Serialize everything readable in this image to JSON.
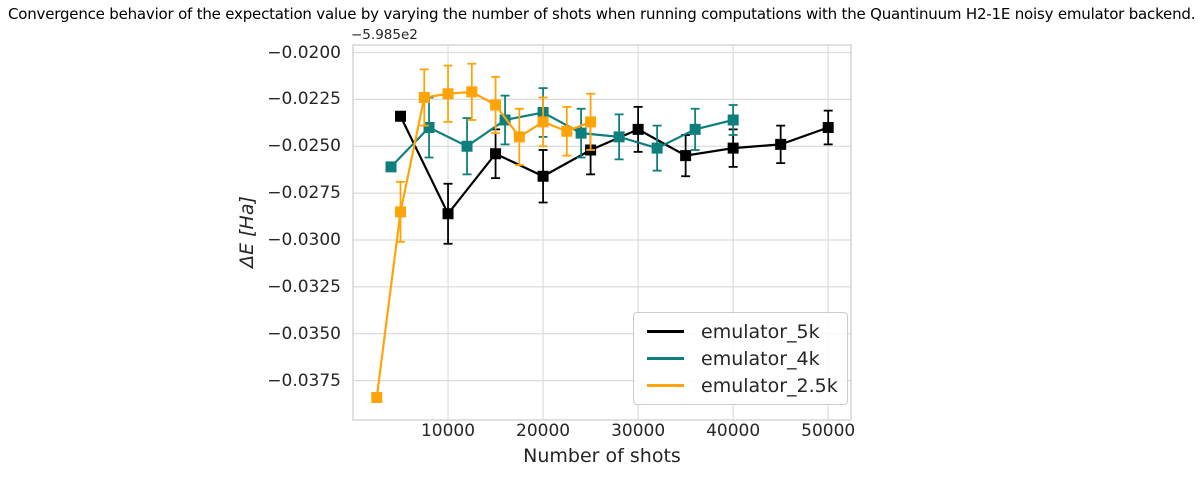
{
  "figure": {
    "title": "Convergence behavior of the expectation value by varying the number of shots when running computations with the Quantinuum H2-1E noisy emulator backend.",
    "y_offset_label": "−5.985e2",
    "xlabel": "Number of shots",
    "ylabel": "ΔE [Ha]"
  },
  "legend": {
    "position": "lower right",
    "entries": [
      {
        "label": "emulator_5k",
        "color": "#000000"
      },
      {
        "label": "emulator_4k",
        "color": "#0f7f7e"
      },
      {
        "label": "emulator_2.5k",
        "color": "#ffa408"
      }
    ]
  },
  "chart_data": {
    "type": "line",
    "title": "Convergence behavior of the expectation value by varying the number of shots when running computations with the Quantinuum H2-1E noisy emulator backend.",
    "xlabel": "Number of shots",
    "ylabel": "ΔE [Ha]",
    "y_axis_offset": "−5.985e2",
    "grid": true,
    "legend_position": "lower right",
    "xlim": [
      0,
      52400
    ],
    "ylim": [
      -0.0396,
      -0.0196
    ],
    "x_ticks": [
      10000,
      20000,
      30000,
      40000,
      50000
    ],
    "y_ticks": [
      -0.02,
      -0.0225,
      -0.025,
      -0.0275,
      -0.03,
      -0.0325,
      -0.035,
      -0.0375
    ],
    "series": [
      {
        "name": "emulator_5k",
        "color": "#000000",
        "marker": "square",
        "x": [
          5000,
          10000,
          15000,
          20000,
          25000,
          30000,
          35000,
          40000,
          45000,
          50000
        ],
        "y": [
          -0.0234,
          -0.0286,
          -0.0254,
          -0.0266,
          -0.0252,
          -0.0241,
          -0.0255,
          -0.0251,
          -0.0249,
          -0.024
        ],
        "yerr": [
          0.0002,
          0.0016,
          0.0013,
          0.0014,
          0.0013,
          0.0012,
          0.0011,
          0.001,
          0.001,
          0.0009
        ]
      },
      {
        "name": "emulator_4k",
        "color": "#0f7f7e",
        "marker": "square",
        "x": [
          4000,
          8000,
          12000,
          16000,
          20000,
          24000,
          28000,
          32000,
          36000,
          40000
        ],
        "y": [
          -0.0261,
          -0.024,
          -0.025,
          -0.0236,
          -0.0232,
          -0.0243,
          -0.0245,
          -0.0251,
          -0.0241,
          -0.0236
        ],
        "yerr": [
          0.0002,
          0.0016,
          0.0015,
          0.0013,
          0.0013,
          0.0013,
          0.0012,
          0.0012,
          0.0011,
          0.0008
        ]
      },
      {
        "name": "emulator_2.5k",
        "color": "#ffa408",
        "marker": "square",
        "x": [
          2500,
          5000,
          7500,
          10000,
          12500,
          15000,
          17500,
          20000,
          22500,
          25000
        ],
        "y": [
          -0.0384,
          -0.0285,
          -0.0224,
          -0.0222,
          -0.0221,
          -0.0228,
          -0.0245,
          -0.0237,
          -0.0242,
          -0.0237
        ],
        "yerr": [
          0.0002,
          0.0016,
          0.0015,
          0.0015,
          0.0015,
          0.0015,
          0.0015,
          0.0013,
          0.0013,
          0.0015
        ]
      }
    ]
  }
}
